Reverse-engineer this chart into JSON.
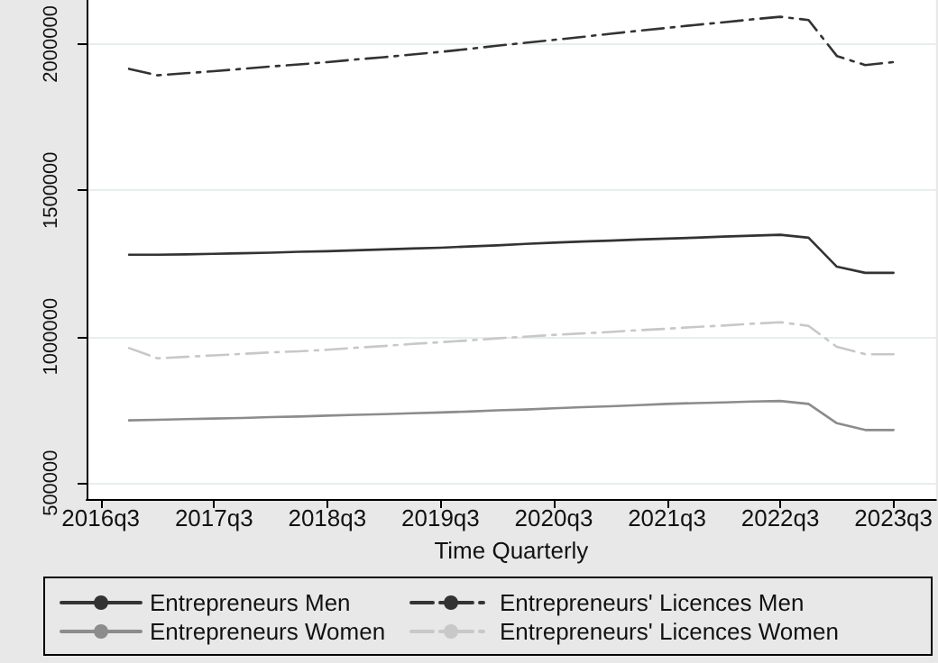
{
  "chart_data": {
    "type": "line",
    "xlabel": "Time Quarterly",
    "categories": [
      "2016q3",
      null,
      null,
      null,
      "2017q3",
      null,
      null,
      null,
      "2018q3",
      null,
      null,
      null,
      "2019q3",
      null,
      null,
      null,
      "2020q3",
      null,
      null,
      null,
      "2021q3",
      null,
      null,
      null,
      "2022q3",
      null,
      null,
      null,
      "2023q3",
      null
    ],
    "ylim": [
      445000,
      2150000
    ],
    "yticks": [
      500000,
      1000000,
      1500000,
      2000000
    ],
    "grid": "y",
    "legend": "bottom",
    "marker": "none",
    "series": [
      {
        "name": "Entrepreneurs Men",
        "color": "#333333",
        "line_style": "solid",
        "values": [
          null,
          1280000,
          1280000,
          1281000,
          1283000,
          1285000,
          1287000,
          1290000,
          1292000,
          1295000,
          1298000,
          1301000,
          1304000,
          1308000,
          1312000,
          1317000,
          1321000,
          1325000,
          1328000,
          1332000,
          1335000,
          1338000,
          1342000,
          1345000,
          1348000,
          1338000,
          1239000,
          1218000,
          1218000,
          null
        ]
      },
      {
        "name": "Entrepreneurs Women",
        "color": "#8c8c8c",
        "line_style": "solid",
        "values": [
          null,
          714000,
          716000,
          718000,
          720000,
          722000,
          725000,
          727000,
          730000,
          733000,
          735000,
          738000,
          741000,
          744000,
          748000,
          751000,
          755000,
          759000,
          762000,
          766000,
          770000,
          773000,
          775000,
          778000,
          780000,
          770000,
          704000,
          681000,
          681000,
          null
        ]
      },
      {
        "name": "Entrepreneurs' Licences Men",
        "color": "#333333",
        "line_style": "dashed",
        "values": [
          null,
          1915000,
          1893000,
          1900000,
          1907000,
          1915000,
          1923000,
          1930000,
          1938000,
          1947000,
          1955000,
          1964000,
          1973000,
          1983000,
          1994000,
          2004000,
          2014000,
          2024000,
          2035000,
          2045000,
          2055000,
          2065000,
          2074000,
          2084000,
          2093000,
          2082000,
          1959000,
          1928000,
          1938000,
          null
        ]
      },
      {
        "name": "Entrepreneurs' Licences Women",
        "color": "#c8c8c8",
        "line_style": "dashed",
        "values": [
          null,
          961000,
          926000,
          931000,
          936000,
          941000,
          946000,
          950000,
          955000,
          962000,
          968000,
          975000,
          981000,
          987000,
          994000,
          1000000,
          1006000,
          1011000,
          1016000,
          1022000,
          1027000,
          1033000,
          1038000,
          1044000,
          1049000,
          1037000,
          965000,
          940000,
          940000,
          null
        ]
      }
    ]
  }
}
